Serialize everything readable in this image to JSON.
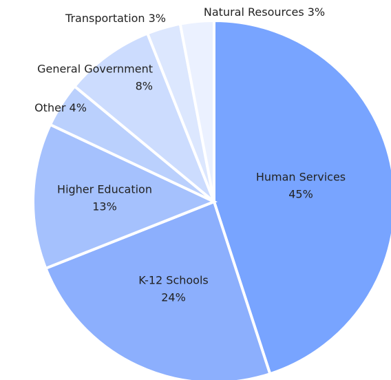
{
  "chart_data": {
    "type": "pie",
    "categories": [
      "Human Services",
      "K-12 Schools",
      "Higher Education",
      "Other",
      "General Government",
      "Transportation",
      "Natural Resources"
    ],
    "values": [
      45,
      24,
      13,
      4,
      8,
      3,
      3
    ],
    "value_labels": [
      "45%",
      "24%",
      "13%",
      "4%",
      "8%",
      "3%",
      "3%"
    ],
    "colors": [
      "#78a4ff",
      "#8caffd",
      "#a5c1fd",
      "#bad0fd",
      "#ccdcfe",
      "#dce7fe",
      "#ebf1ff"
    ]
  }
}
